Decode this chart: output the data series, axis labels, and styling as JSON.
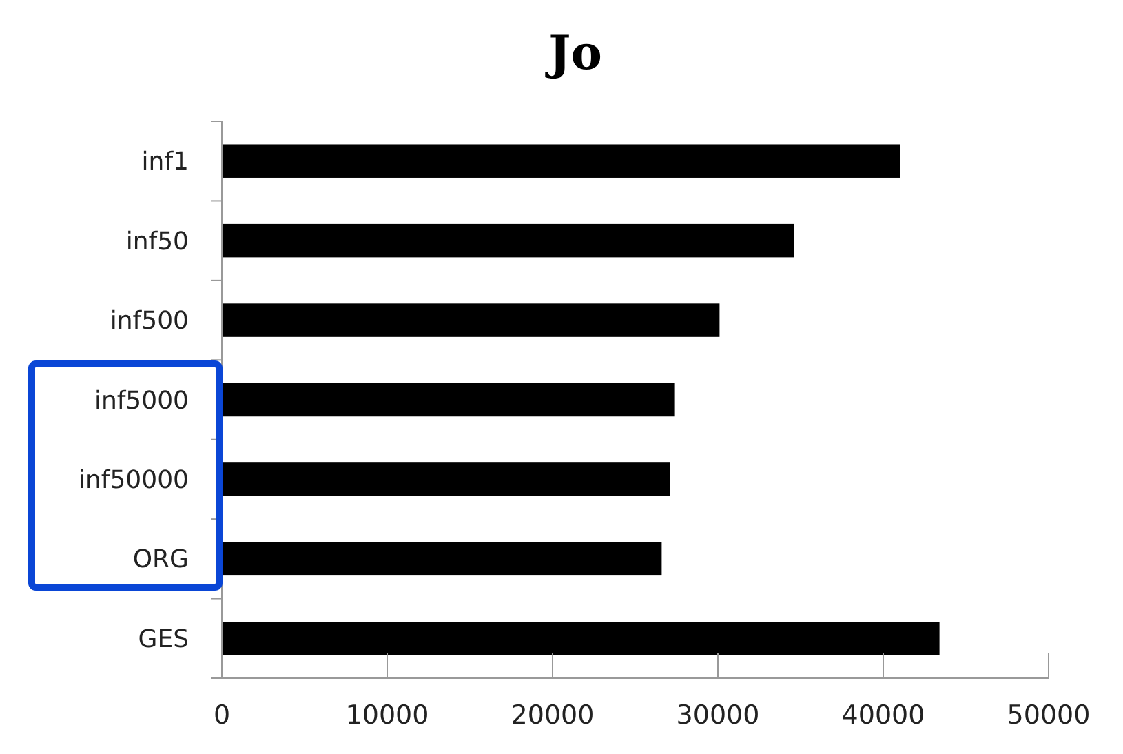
{
  "chart_data": {
    "type": "bar",
    "orientation": "horizontal",
    "title": "Jo",
    "categories": [
      "inf1",
      "inf50",
      "inf500",
      "inf5000",
      "inf50000",
      "ORG",
      "GES"
    ],
    "values": [
      41000,
      34600,
      30100,
      27400,
      27100,
      26600,
      43400
    ],
    "color": "#000000",
    "xlim": [
      0,
      50000
    ],
    "xticks": [
      0,
      10000,
      20000,
      30000,
      40000,
      50000
    ],
    "grid": false
  }
}
